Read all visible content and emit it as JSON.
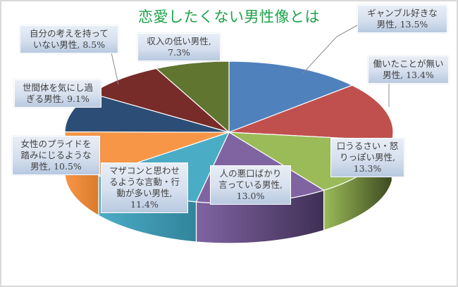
{
  "chart_data": {
    "type": "pie",
    "style": "3d-pie",
    "title": "恋愛したくない男性像とは",
    "categories": [
      "ギャンブル好きな男性",
      "働いたことが無い男性",
      "口うるさい・怒りっぽい男性",
      "人の悪口ばかり言っている男性",
      "マザコンと思わせるような言動・行動が多い男性",
      "女性のプライドを踏みにじるような男性",
      "世間体を気にし過ぎる男性",
      "自分の考えを持っていない男性",
      "収入の低い男性"
    ],
    "values": [
      13.5,
      13.4,
      13.3,
      13.0,
      11.4,
      10.5,
      9.1,
      8.5,
      7.3
    ],
    "unit": "%",
    "colors": [
      "#4f81bd",
      "#c0504d",
      "#9bbb59",
      "#8064a2",
      "#4bacc6",
      "#f79646",
      "#2c4d75",
      "#772c2a",
      "#5f7530"
    ],
    "side_colors": [
      "#3a6190",
      "#8f3b39",
      "#3c4a20",
      "#3f2f55",
      "#31849b",
      "#d97b2b",
      "#1e3552",
      "#511e1c",
      "#3f4e20"
    ],
    "legend": "none",
    "data_labels": "category name + value, callouts"
  },
  "title": "恋愛したくない男性像とは",
  "labels": [
    {
      "line1": "ギャンブル好きな",
      "line2": "男性, 13.5%"
    },
    {
      "line1": "働いたことが無い",
      "line2": "男性, 13.4%"
    },
    {
      "line1": "口うるさい・怒",
      "line2": "りっぽい男性,",
      "line3": "13.3%"
    },
    {
      "line1": "人の悪口ばかり",
      "line2": "言っている男性,",
      "line3": "13.0%"
    },
    {
      "line1": "マザコンと思わせ",
      "line2": "るような言動・行",
      "line3": "動が多い男性,",
      "line4": "11.4%"
    },
    {
      "line1": "女性のプライドを",
      "line2": "踏みにじるような",
      "line3": "男性, 10.5%"
    },
    {
      "line1": "世間体を気にし過",
      "line2": "ぎる男性, 9.1%"
    },
    {
      "line1": "自分の考えを持って",
      "line2": "いない男性, 8.5%"
    },
    {
      "line1": "収入の低い男性,",
      "line2": "7.3%"
    }
  ]
}
